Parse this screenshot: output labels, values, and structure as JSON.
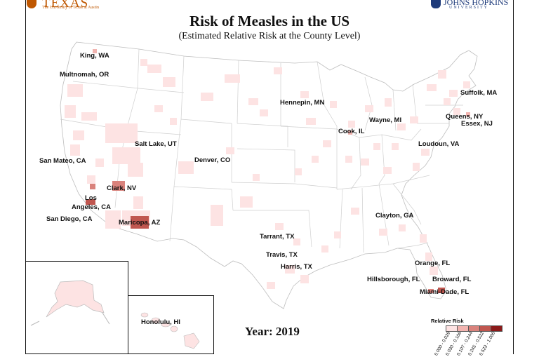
{
  "header": {
    "title": "Risk of Measles in the US",
    "subtitle": "(Estimated Relative Risk at the County Level)"
  },
  "logos": {
    "left": {
      "word": "TEXAS",
      "sub": "The University of Texas at Austin",
      "color": "#bf5700"
    },
    "right": {
      "word": "JOHNS HOPKINS",
      "sub": "UNIVERSITY",
      "color": "#1d3a7a"
    }
  },
  "year_label": "Year: 2019",
  "colors": {
    "very_low": "#fde3e3",
    "low": "#f2b4b0",
    "mid": "#d9827c",
    "high": "#c0564f",
    "very_high": "#8b1a1a"
  },
  "county_labels": [
    "King, WA",
    "Multnomah, OR",
    "San Mateo, CA",
    "Salt Lake, UT",
    "Denver, CO",
    "Clark, NV",
    "Los",
    "Angeles, CA",
    "San Diego, CA",
    "Maricopa, AZ",
    "Hennepin, MN",
    "Cook, IL",
    "Wayne, MI",
    "Suffolk, MA",
    "Queens, NY",
    "Essex, NJ",
    "Loudoun, VA",
    "Clayton, GA",
    "Tarrant, TX",
    "Travis, TX",
    "Harris, TX",
    "Orange, FL",
    "Hillsborough, FL",
    "Broward, FL",
    "Miami-Dade, FL",
    "Honolulu, HI"
  ],
  "legend": {
    "title": "Relative Risk",
    "bins": [
      {
        "label": "0.000 - 0.029",
        "color": "#fde3e3"
      },
      {
        "label": "0.030 - 0.106",
        "color": "#f2b4b0"
      },
      {
        "label": "0.107 - 0.244",
        "color": "#d9827c"
      },
      {
        "label": "0.245 - 0.522",
        "color": "#c0564f"
      },
      {
        "label": "0.523 - 1.000",
        "color": "#8b1a1a"
      }
    ]
  }
}
